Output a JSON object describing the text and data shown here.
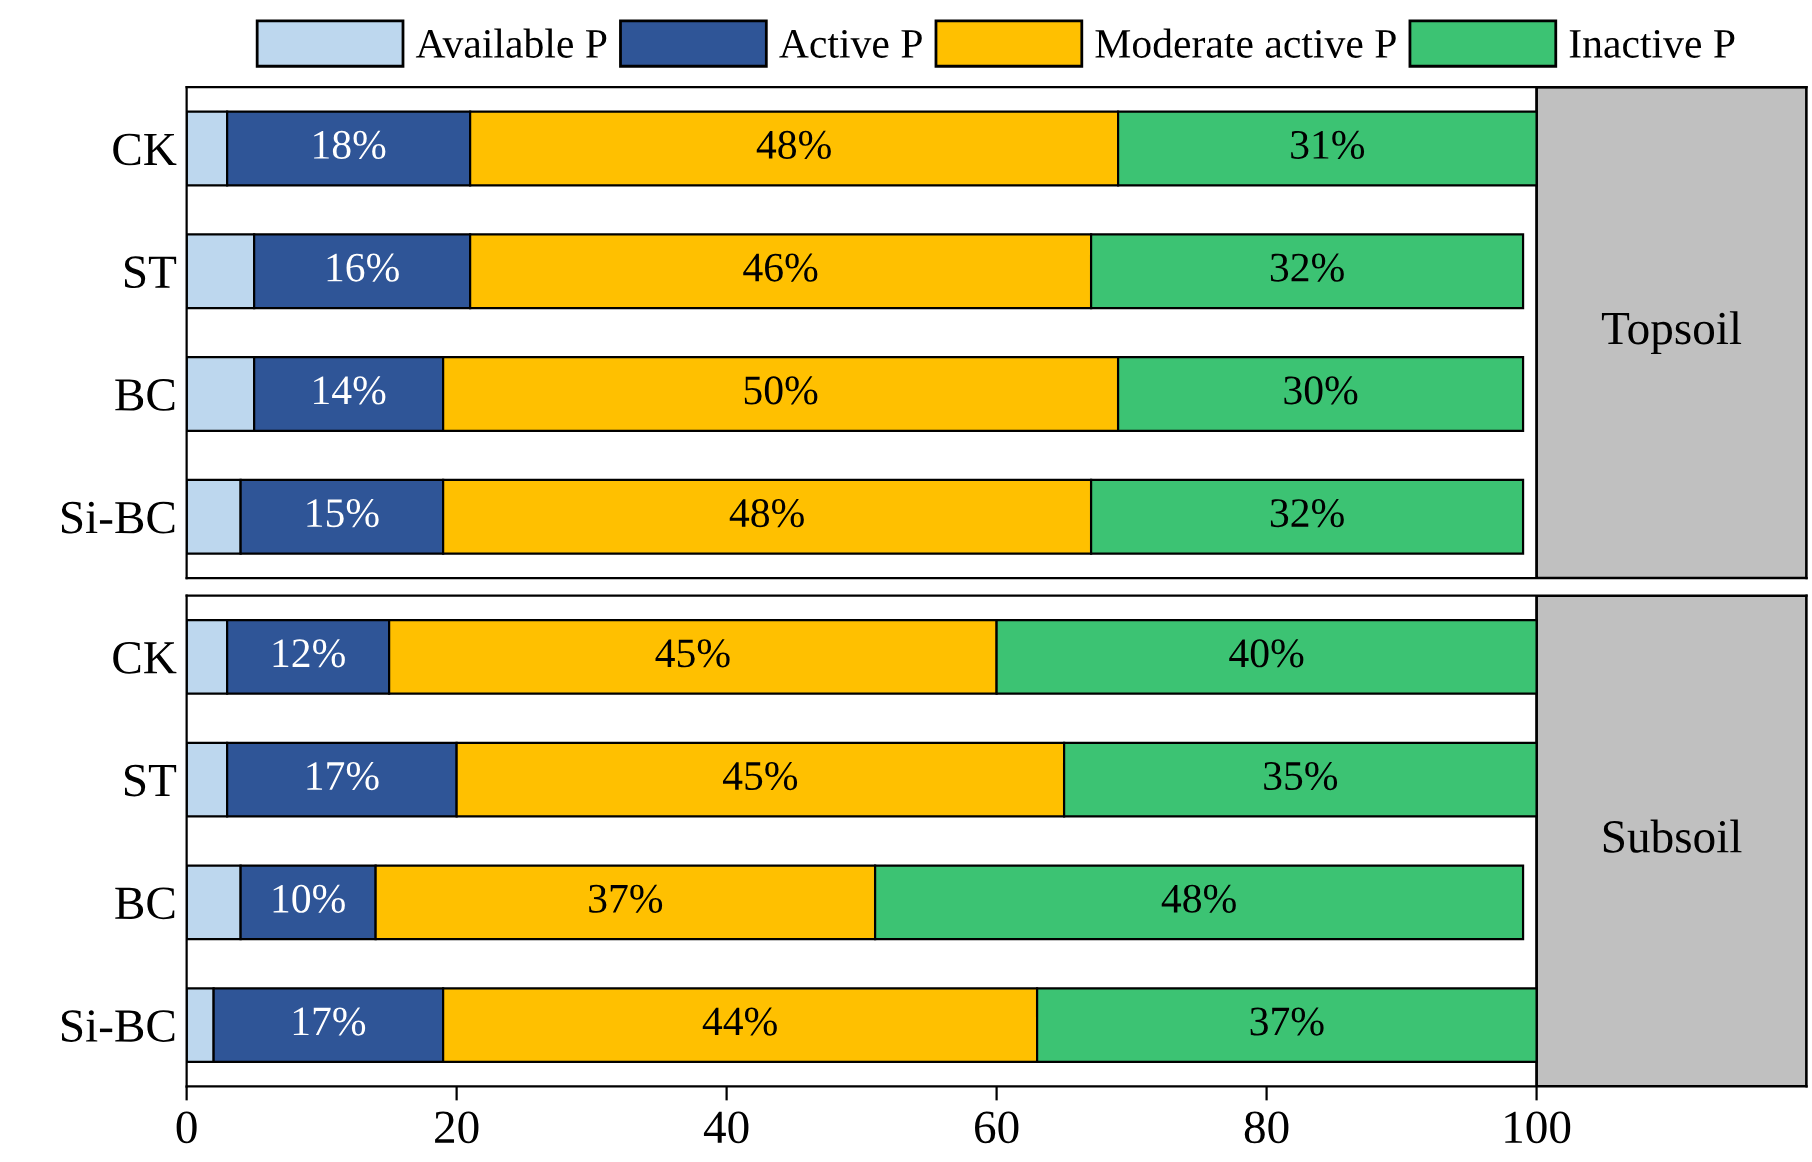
{
  "chart_data": [
    {
      "type": "bar",
      "orientation": "horizontal",
      "stacked": true,
      "categories": [
        "CK",
        "ST",
        "BC",
        "Si-BC"
      ],
      "xlim": [
        0,
        120
      ],
      "tick_labels": "y",
      "legend": "top",
      "grid": false,
      "series": [
        {
          "name": "Available P",
          "color": "#bdd7ee",
          "values": [
            3,
            5,
            5,
            4
          ]
        },
        {
          "name": "Active P",
          "color": "#2f5597",
          "values": [
            18,
            16,
            14,
            15
          ],
          "value_labels": [
            "18%",
            "16%",
            "14%",
            "15%"
          ]
        },
        {
          "name": "Moderate active P",
          "color": "#ffc000",
          "values": [
            48,
            46,
            50,
            48
          ],
          "value_labels": [
            "48%",
            "46%",
            "50%",
            "48%"
          ]
        },
        {
          "name": "Inactive P",
          "color": "#3cc373",
          "values": [
            31,
            32,
            30,
            32
          ],
          "value_labels": [
            "31%",
            "32%",
            "30%",
            "32%"
          ]
        }
      ],
      "bands": [
        {
          "axis": "x",
          "from": 100,
          "to": 120,
          "label": "Topsoil",
          "color": "#c0c0c0"
        }
      ]
    },
    {
      "type": "bar",
      "orientation": "horizontal",
      "stacked": true,
      "categories": [
        "CK",
        "ST",
        "BC",
        "Si-BC"
      ],
      "xlim": [
        0,
        120
      ],
      "xticks": [
        0,
        20,
        40,
        60,
        80,
        100
      ],
      "grid": false,
      "series": [
        {
          "color": "#bdd7ee",
          "values": [
            3,
            3,
            4,
            2
          ]
        },
        {
          "color": "#2f5597",
          "values": [
            12,
            17,
            10,
            17
          ],
          "value_labels": [
            "12%",
            "17%",
            "10%",
            "17%"
          ]
        },
        {
          "color": "#ffc000",
          "values": [
            45,
            45,
            37,
            44
          ],
          "value_labels": [
            "45%",
            "45%",
            "37%",
            "44%"
          ]
        },
        {
          "color": "#3cc373",
          "values": [
            40,
            35,
            48,
            37
          ],
          "value_labels": [
            "40%",
            "35%",
            "48%",
            "37%"
          ]
        }
      ],
      "bands": [
        {
          "axis": "x",
          "from": 100,
          "to": 120,
          "label": "Subsoil",
          "color": "#c0c0c0"
        }
      ]
    }
  ]
}
